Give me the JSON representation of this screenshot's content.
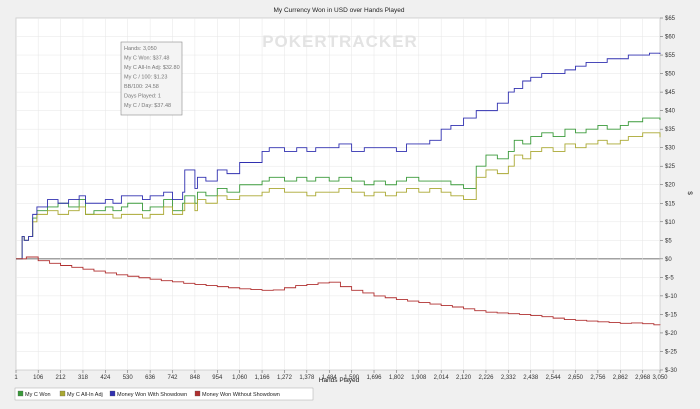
{
  "chart_data": {
    "type": "line",
    "title": "My Currency Won in USD over Hands Played",
    "xlabel": "Hands Played",
    "ylabel": "$",
    "xlim": [
      1,
      3050
    ],
    "ylim": [
      -30,
      65
    ],
    "x_ticks": [
      1,
      106,
      212,
      318,
      424,
      530,
      636,
      742,
      848,
      954,
      1060,
      1166,
      1272,
      1378,
      1484,
      1590,
      1696,
      1802,
      1908,
      2014,
      2120,
      2226,
      2332,
      2438,
      2544,
      2650,
      2756,
      2862,
      2968,
      3050
    ],
    "x_tick_labels": [
      "1",
      "106",
      "212",
      "318",
      "424",
      "530",
      "636",
      "742",
      "848",
      "954",
      "1,060",
      "1,166",
      "1,272",
      "1,378",
      "1,484",
      "1,590",
      "1,696",
      "1,802",
      "1,908",
      "2,014",
      "2,120",
      "2,226",
      "2,332",
      "2,438",
      "2,544",
      "2,650",
      "2,756",
      "2,862",
      "2,968",
      "3,050"
    ],
    "y_ticks": [
      -30,
      -25,
      -20,
      -15,
      -10,
      -5,
      0,
      5,
      10,
      15,
      20,
      25,
      30,
      35,
      40,
      45,
      50,
      55,
      60,
      65
    ],
    "y_tick_labels": [
      "$-30",
      "$-25",
      "$-20",
      "$-15",
      "$-10",
      "$-5",
      "$0",
      "$5",
      "$10",
      "$15",
      "$20",
      "$25",
      "$30",
      "$35",
      "$40",
      "$45",
      "$50",
      "$55",
      "$60",
      "$65"
    ],
    "grid": true,
    "legend_position": "bottom",
    "series": [
      {
        "name": "My C Won",
        "color": "#3a9a3a",
        "x": [
          1,
          30,
          40,
          60,
          80,
          100,
          150,
          200,
          250,
          300,
          330,
          370,
          424,
          460,
          500,
          530,
          600,
          636,
          700,
          742,
          790,
          800,
          848,
          860,
          900,
          954,
          1000,
          1060,
          1166,
          1200,
          1272,
          1330,
          1378,
          1420,
          1484,
          1530,
          1590,
          1650,
          1696,
          1750,
          1802,
          1850,
          1908,
          1960,
          2014,
          2060,
          2120,
          2180,
          2226,
          2280,
          2332,
          2360,
          2400,
          2438,
          2490,
          2544,
          2600,
          2650,
          2700,
          2756,
          2800,
          2862,
          2900,
          2968,
          3000,
          3050
        ],
        "y": [
          0,
          6,
          5,
          6,
          11,
          13,
          14,
          15,
          14,
          16,
          12,
          13,
          14,
          13,
          14,
          15,
          13,
          14,
          16,
          13,
          15,
          17,
          15,
          18,
          17,
          19,
          18,
          20,
          21,
          22,
          21,
          22,
          21,
          22,
          21,
          22,
          21,
          20,
          21,
          20,
          21,
          22,
          21,
          21,
          21,
          20,
          19,
          25,
          28,
          27,
          29,
          32,
          31,
          33,
          34,
          33,
          35,
          34,
          35,
          36,
          35,
          36,
          37,
          38,
          38,
          37.48
        ]
      },
      {
        "name": "My C All-In Adj",
        "color": "#aaa832",
        "x": [
          1,
          30,
          40,
          60,
          80,
          100,
          150,
          200,
          250,
          300,
          330,
          370,
          424,
          460,
          500,
          530,
          600,
          636,
          700,
          742,
          790,
          800,
          848,
          860,
          900,
          954,
          1000,
          1060,
          1166,
          1200,
          1272,
          1330,
          1378,
          1420,
          1484,
          1530,
          1590,
          1650,
          1696,
          1750,
          1802,
          1850,
          1908,
          1960,
          2014,
          2060,
          2120,
          2180,
          2226,
          2280,
          2332,
          2360,
          2400,
          2438,
          2490,
          2544,
          2600,
          2650,
          2700,
          2756,
          2800,
          2862,
          2900,
          2968,
          3000,
          3050
        ],
        "y": [
          0,
          6,
          5,
          6,
          10,
          12,
          13,
          12,
          13,
          14,
          12,
          12,
          12,
          11,
          12,
          12,
          11,
          12,
          14,
          12,
          13,
          15,
          13,
          16,
          15,
          17,
          16,
          17,
          18,
          19,
          18,
          18,
          17,
          18,
          18,
          19,
          18,
          17,
          18,
          17,
          18,
          19,
          18,
          19,
          18,
          17,
          16,
          22,
          24,
          23,
          25,
          28,
          27,
          29,
          30,
          29,
          31,
          30,
          31,
          32,
          31,
          32,
          33,
          34,
          34,
          32.8
        ]
      },
      {
        "name": "Money Won With Showdown",
        "color": "#3030b0",
        "x": [
          1,
          30,
          40,
          60,
          80,
          100,
          150,
          200,
          250,
          300,
          330,
          370,
          424,
          460,
          500,
          530,
          600,
          636,
          700,
          742,
          790,
          800,
          848,
          860,
          900,
          954,
          1000,
          1060,
          1166,
          1200,
          1272,
          1330,
          1378,
          1420,
          1484,
          1530,
          1590,
          1650,
          1696,
          1750,
          1802,
          1850,
          1908,
          1960,
          2014,
          2060,
          2120,
          2180,
          2226,
          2280,
          2332,
          2360,
          2400,
          2438,
          2490,
          2544,
          2600,
          2650,
          2700,
          2756,
          2800,
          2862,
          2900,
          2968,
          3000,
          3050
        ],
        "y": [
          0,
          6,
          5,
          6,
          12,
          14,
          16,
          15,
          16,
          17,
          15,
          15,
          16,
          15,
          17,
          17,
          16,
          17,
          18,
          16,
          18,
          24,
          19,
          22,
          21,
          24,
          23,
          26,
          29,
          30,
          29,
          30,
          29,
          30,
          30,
          31,
          29,
          30,
          30,
          30,
          29,
          31,
          31,
          32,
          35,
          36,
          38,
          40,
          40,
          42,
          45,
          46,
          48,
          49,
          50,
          50,
          51,
          52,
          53,
          53,
          54,
          54,
          55,
          55,
          55.5,
          55.3
        ]
      },
      {
        "name": "Money Won Without Showdown",
        "color": "#b03030",
        "x": [
          1,
          50,
          106,
          160,
          212,
          265,
          318,
          370,
          424,
          477,
          530,
          583,
          636,
          689,
          742,
          795,
          848,
          901,
          954,
          1007,
          1060,
          1113,
          1166,
          1219,
          1272,
          1325,
          1378,
          1431,
          1484,
          1537,
          1590,
          1643,
          1696,
          1749,
          1802,
          1855,
          1908,
          1961,
          2014,
          2067,
          2120,
          2173,
          2226,
          2279,
          2332,
          2385,
          2438,
          2491,
          2544,
          2597,
          2650,
          2703,
          2756,
          2809,
          2862,
          2915,
          2968,
          3021,
          3050
        ],
        "y": [
          0,
          0.5,
          -0.5,
          -1.2,
          -1.8,
          -2.3,
          -2.8,
          -3.3,
          -3.8,
          -4.3,
          -4.7,
          -5.1,
          -5.5,
          -5.9,
          -6.2,
          -6.6,
          -6.9,
          -7.2,
          -7.5,
          -7.8,
          -8.1,
          -8.3,
          -8.5,
          -8.4,
          -7.8,
          -7.2,
          -6.9,
          -6.5,
          -6.3,
          -7.5,
          -8.5,
          -9.2,
          -10,
          -10.5,
          -11,
          -11.4,
          -11.8,
          -12.2,
          -12.6,
          -13,
          -13.5,
          -14,
          -14.4,
          -14.6,
          -14.8,
          -15,
          -15.3,
          -15.6,
          -16,
          -16.4,
          -16.6,
          -16.8,
          -17,
          -17.2,
          -17.4,
          -17.3,
          -17.5,
          -17.8,
          -17.9
        ]
      }
    ]
  },
  "stats_box": {
    "lines": [
      "Hands: 3,050",
      "My C Won: $37.48",
      "My C All-In Adj: $32.80",
      "My C / 100: $1.23",
      "BB/100: 24.58",
      "Days Played: 1",
      "My C / Day: $37.48"
    ]
  },
  "watermark": {
    "part1": "POKER",
    "part2": "TRACKER"
  }
}
